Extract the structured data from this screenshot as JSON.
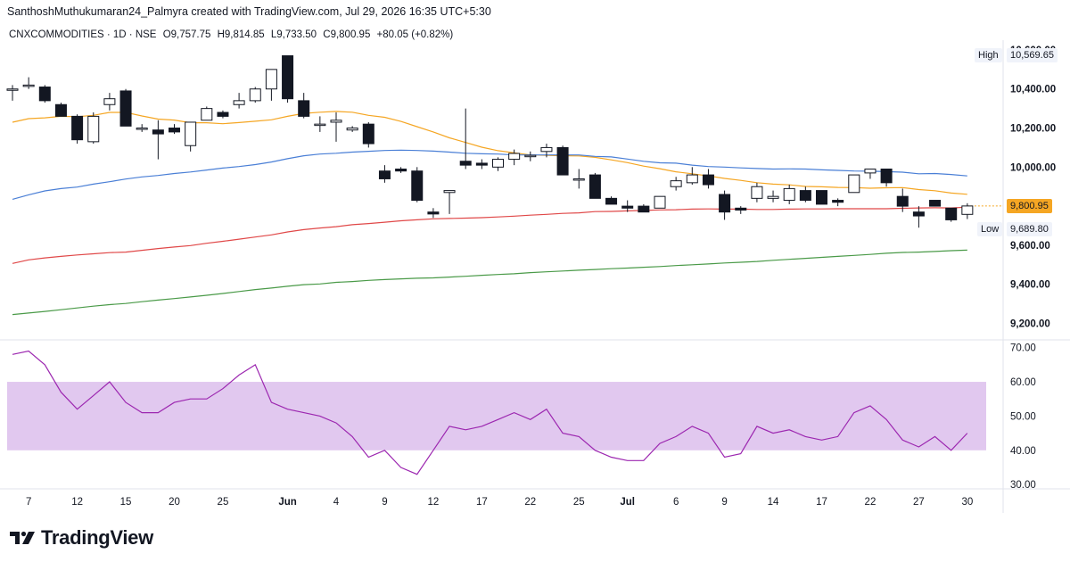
{
  "header": {
    "title": "SanthoshMuthukumaran24_Palmyra created with TradingView.com, Jul 29, 2026 16:35 UTC+5:30"
  },
  "legend": {
    "symbol": "CNXCOMMODITIES · 1D · NSE",
    "open": "O9,757.75",
    "high": "H9,814.85",
    "low": "L9,733.50",
    "close": "C9,800.95",
    "change": "+80.05 (+0.82%)"
  },
  "price_tags": {
    "high_label": "High",
    "high_value": "10,569.65",
    "last_value": "9,800.95",
    "low_label": "Low",
    "low_value": "9,689.80"
  },
  "brand": {
    "name": "TradingView",
    "logo_icon": "tradingview-logo-icon"
  },
  "colors": {
    "up_fill": "#ffffff",
    "down_fill": "#131722",
    "ema_orange": "#f5a623",
    "ema_blue": "#4a7fd6",
    "ema_red": "#e04848",
    "ema_green": "#4a9a48",
    "rsi_line": "#9c27b0",
    "rsi_band": "#e1c8ef",
    "last_price": "#f5a623"
  },
  "chart_data": [
    {
      "type": "candlestick",
      "price_axis_ticks": [
        "10,600.00",
        "10,400.00",
        "10,200.00",
        "10,000.00",
        "9,600.00",
        "9,400.00",
        "9,200.00"
      ],
      "ylim": [
        9120,
        10650
      ],
      "x_axis_ticks": [
        {
          "i": 1,
          "label": "7"
        },
        {
          "i": 4,
          "label": "12"
        },
        {
          "i": 7,
          "label": "15"
        },
        {
          "i": 10,
          "label": "20"
        },
        {
          "i": 13,
          "label": "25"
        },
        {
          "i": 17,
          "label": "Jun"
        },
        {
          "i": 20,
          "label": "4"
        },
        {
          "i": 23,
          "label": "9"
        },
        {
          "i": 26,
          "label": "12"
        },
        {
          "i": 29,
          "label": "17"
        },
        {
          "i": 32,
          "label": "22"
        },
        {
          "i": 35,
          "label": "25"
        },
        {
          "i": 38,
          "label": "Jul"
        },
        {
          "i": 41,
          "label": "6"
        },
        {
          "i": 44,
          "label": "9"
        },
        {
          "i": 47,
          "label": "14"
        },
        {
          "i": 50,
          "label": "17"
        },
        {
          "i": 53,
          "label": "22"
        },
        {
          "i": 56,
          "label": "27"
        },
        {
          "i": 59,
          "label": "30"
        }
      ],
      "candles": [
        [
          10400,
          10420,
          10340,
          10400
        ],
        [
          10420,
          10460,
          10400,
          10420
        ],
        [
          10410,
          10420,
          10330,
          10340
        ],
        [
          10320,
          10330,
          10260,
          10260
        ],
        [
          10260,
          10270,
          10120,
          10140
        ],
        [
          10130,
          10280,
          10120,
          10260
        ],
        [
          10320,
          10380,
          10290,
          10350
        ],
        [
          10390,
          10400,
          10210,
          10210
        ],
        [
          10200,
          10220,
          10180,
          10200
        ],
        [
          10190,
          10240,
          10040,
          10170
        ],
        [
          10200,
          10220,
          10170,
          10180
        ],
        [
          10110,
          10230,
          10080,
          10230
        ],
        [
          10240,
          10310,
          10240,
          10300
        ],
        [
          10280,
          10290,
          10250,
          10260
        ],
        [
          10320,
          10380,
          10300,
          10340
        ],
        [
          10340,
          10410,
          10330,
          10400
        ],
        [
          10400,
          10490,
          10340,
          10500
        ],
        [
          10570,
          10570,
          10330,
          10350
        ],
        [
          10340,
          10380,
          10250,
          10260
        ],
        [
          10220,
          10260,
          10180,
          10220
        ],
        [
          10230,
          10280,
          10130,
          10240
        ],
        [
          10190,
          10210,
          10180,
          10200
        ],
        [
          10220,
          10230,
          10100,
          10120
        ],
        [
          9980,
          10010,
          9920,
          9940
        ],
        [
          9990,
          10000,
          9970,
          9980
        ],
        [
          9980,
          10000,
          9820,
          9830
        ],
        [
          9770,
          9790,
          9740,
          9760
        ],
        [
          9870,
          9880,
          9760,
          9880
        ],
        [
          10030,
          10300,
          9990,
          10010
        ],
        [
          10020,
          10040,
          9990,
          10010
        ],
        [
          10000,
          10050,
          9980,
          10040
        ],
        [
          10040,
          10090,
          10010,
          10070
        ],
        [
          10060,
          10080,
          10030,
          10060
        ],
        [
          10080,
          10120,
          10050,
          10100
        ],
        [
          10100,
          10110,
          9970,
          9960
        ],
        [
          9940,
          9990,
          9890,
          9940
        ],
        [
          9960,
          9970,
          9850,
          9840
        ],
        [
          9840,
          9850,
          9810,
          9810
        ],
        [
          9800,
          9830,
          9770,
          9790
        ],
        [
          9800,
          9810,
          9770,
          9770
        ],
        [
          9790,
          9850,
          9790,
          9850
        ],
        [
          9900,
          9950,
          9880,
          9930
        ],
        [
          9920,
          10000,
          9910,
          9960
        ],
        [
          9960,
          9990,
          9890,
          9910
        ],
        [
          9860,
          9880,
          9730,
          9770
        ],
        [
          9790,
          9800,
          9760,
          9780
        ],
        [
          9840,
          9920,
          9820,
          9900
        ],
        [
          9840,
          9880,
          9820,
          9850
        ],
        [
          9830,
          9910,
          9810,
          9890
        ],
        [
          9880,
          9900,
          9820,
          9830
        ],
        [
          9880,
          9880,
          9820,
          9810
        ],
        [
          9830,
          9840,
          9800,
          9820
        ],
        [
          9870,
          9960,
          9870,
          9960
        ],
        [
          9970,
          9990,
          9940,
          9990
        ],
        [
          9990,
          9990,
          9900,
          9920
        ],
        [
          9850,
          9890,
          9770,
          9800
        ],
        [
          9770,
          9800,
          9690,
          9750
        ],
        [
          9830,
          9830,
          9810,
          9800
        ],
        [
          9790,
          9790,
          9720,
          9730
        ],
        [
          9758,
          9815,
          9734,
          9801
        ]
      ],
      "series": [
        {
          "color_key": "ema_orange",
          "values": [
            10230,
            10248,
            10252,
            10260,
            10258,
            10265,
            10280,
            10280,
            10262,
            10246,
            10241,
            10227,
            10227,
            10222,
            10228,
            10235,
            10242,
            10260,
            10275,
            10281,
            10285,
            10281,
            10265,
            10255,
            10234,
            10207,
            10180,
            10150,
            10126,
            10102,
            10084,
            10073,
            10062,
            10060,
            10058,
            10057,
            10050,
            10037,
            10023,
            10005,
            9992,
            9976,
            9966,
            9955,
            9942,
            9932,
            9920,
            9913,
            9909,
            9901,
            9899,
            9896,
            9895,
            9892,
            9894,
            9895,
            9885,
            9879,
            9867,
            9861
          ]
        },
        {
          "color_key": "ema_blue",
          "values": [
            9835,
            9858,
            9878,
            9890,
            9898,
            9913,
            9925,
            9939,
            9950,
            9957,
            9967,
            9975,
            9985,
            9995,
            10003,
            10013,
            10026,
            10043,
            10058,
            10067,
            10071,
            10077,
            10081,
            10085,
            10087,
            10085,
            10082,
            10077,
            10071,
            10068,
            10067,
            10062,
            10062,
            10062,
            10062,
            10062,
            10055,
            10052,
            10041,
            10030,
            10022,
            10020,
            10010,
            10003,
            10000,
            9996,
            9993,
            9990,
            9991,
            9990,
            9986,
            9983,
            9980,
            9979,
            9977,
            9974,
            9966,
            9967,
            9962,
            9955
          ]
        },
        {
          "color_key": "ema_red",
          "values": [
            9507,
            9525,
            9535,
            9543,
            9550,
            9556,
            9562,
            9565,
            9574,
            9583,
            9591,
            9598,
            9610,
            9620,
            9631,
            9642,
            9653,
            9668,
            9680,
            9688,
            9695,
            9705,
            9711,
            9718,
            9725,
            9730,
            9735,
            9737,
            9739,
            9741,
            9745,
            9749,
            9754,
            9758,
            9763,
            9766,
            9772,
            9773,
            9776,
            9778,
            9781,
            9782,
            9785,
            9786,
            9785,
            9785,
            9783,
            9783,
            9785,
            9786,
            9786,
            9787,
            9787,
            9787,
            9787,
            9789,
            9791,
            9792,
            9791,
            9795
          ]
        },
        {
          "color_key": "ema_green",
          "values": [
            9245,
            9253,
            9261,
            9270,
            9279,
            9288,
            9296,
            9302,
            9311,
            9319,
            9327,
            9335,
            9344,
            9353,
            9363,
            9373,
            9381,
            9390,
            9398,
            9402,
            9410,
            9414,
            9420,
            9424,
            9428,
            9431,
            9433,
            9437,
            9441,
            9446,
            9450,
            9454,
            9460,
            9464,
            9468,
            9472,
            9476,
            9480,
            9483,
            9487,
            9491,
            9496,
            9500,
            9504,
            9509,
            9513,
            9517,
            9523,
            9528,
            9533,
            9538,
            9543,
            9548,
            9553,
            9559,
            9563,
            9565,
            9568,
            9572,
            9575
          ]
        }
      ]
    },
    {
      "type": "line",
      "name": "RSI",
      "y_axis_ticks": [
        "70.00",
        "60.00",
        "50.00",
        "40.00",
        "30.00"
      ],
      "ylim": [
        29,
        72
      ],
      "band": [
        40,
        60
      ],
      "values": [
        68,
        69,
        65,
        57,
        52,
        56,
        60,
        54,
        51,
        51,
        54,
        55,
        55,
        58,
        62,
        65,
        54,
        52,
        51,
        50,
        48,
        44,
        38,
        40,
        35,
        33,
        40,
        47,
        46,
        47,
        49,
        51,
        49,
        52,
        45,
        44,
        40,
        38,
        37,
        37,
        42,
        44,
        47,
        45,
        38,
        39,
        47,
        45,
        46,
        44,
        43,
        44,
        51,
        53,
        49,
        43,
        41,
        44,
        40,
        45
      ]
    }
  ]
}
